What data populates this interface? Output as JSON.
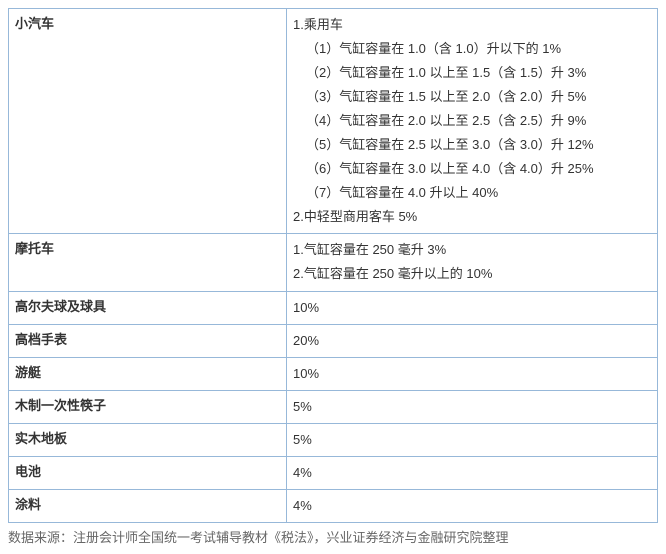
{
  "table": {
    "border_color": "#97b8d9",
    "rows": [
      {
        "category": "小汽车",
        "details": [
          {
            "text": "1.乘用车",
            "indent": false
          },
          {
            "text": "（1）气缸容量在 1.0（含 1.0）升以下的 1%",
            "indent": true
          },
          {
            "text": "（2）气缸容量在 1.0 以上至 1.5（含 1.5）升 3%",
            "indent": true
          },
          {
            "text": "（3）气缸容量在 1.5 以上至 2.0（含 2.0）升 5%",
            "indent": true
          },
          {
            "text": "（4）气缸容量在 2.0 以上至 2.5（含 2.5）升 9%",
            "indent": true
          },
          {
            "text": "（5）气缸容量在 2.5 以上至 3.0（含 3.0）升 12%",
            "indent": true
          },
          {
            "text": "（6）气缸容量在 3.0 以上至 4.0（含 4.0）升 25%",
            "indent": true
          },
          {
            "text": "（7）气缸容量在 4.0 升以上 40%",
            "indent": true
          },
          {
            "text": "2.中轻型商用客车 5%",
            "indent": false
          }
        ]
      },
      {
        "category": "摩托车",
        "details": [
          {
            "text": "1.气缸容量在 250 毫升 3%",
            "indent": false
          },
          {
            "text": "2.气缸容量在 250 毫升以上的 10%",
            "indent": false
          }
        ]
      },
      {
        "category": "高尔夫球及球具",
        "details": [
          {
            "text": "10%",
            "indent": false
          }
        ]
      },
      {
        "category": "高档手表",
        "details": [
          {
            "text": "20%",
            "indent": false
          }
        ]
      },
      {
        "category": "游艇",
        "details": [
          {
            "text": "10%",
            "indent": false
          }
        ]
      },
      {
        "category": "木制一次性筷子",
        "details": [
          {
            "text": "5%",
            "indent": false
          }
        ]
      },
      {
        "category": "实木地板",
        "details": [
          {
            "text": "5%",
            "indent": false
          }
        ]
      },
      {
        "category": "电池",
        "details": [
          {
            "text": "4%",
            "indent": false
          }
        ]
      },
      {
        "category": "涂料",
        "details": [
          {
            "text": "4%",
            "indent": false
          }
        ]
      }
    ]
  },
  "source": "数据来源：注册会计师全国统一考试辅导教材《税法》，兴业证券经济与金融研究院整理"
}
